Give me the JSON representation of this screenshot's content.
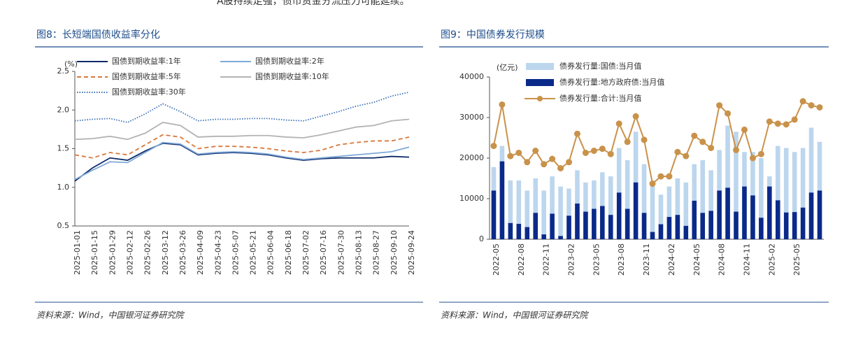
{
  "header_text": "A股持续走强，债市资金分流压力可能延续。",
  "chart_data": [
    {
      "type": "line",
      "title": "图8：长短端国债收益率分化",
      "source": "资料来源：Wind，中国银河证券研究院",
      "y_label": "(%)",
      "categories": [
        "2025-01-01",
        "2025-01-15",
        "2025-01-29",
        "2025-02-12",
        "2025-02-26",
        "2025-03-12",
        "2025-03-26",
        "2025-04-09",
        "2025-04-23",
        "2025-05-07",
        "2025-05-21",
        "2025-06-04",
        "2025-06-18",
        "2025-07-02",
        "2025-07-16",
        "2025-07-30",
        "2025-08-13",
        "2025-08-27",
        "2025-09-10",
        "2025-09-24"
      ],
      "ylim": [
        0.5,
        2.5
      ],
      "yticks": [
        0.5,
        {
          "value": 1,
          "label": "1.0"
        },
        1.5,
        {
          "value": 2,
          "label": "2.0"
        },
        2.5
      ],
      "series": [
        {
          "name": "国债到期收益率:1年",
          "color": "#0d2a6b",
          "style": "solid",
          "values": [
            1.08,
            1.25,
            1.38,
            1.35,
            1.47,
            1.57,
            1.55,
            1.42,
            1.44,
            1.45,
            1.44,
            1.42,
            1.38,
            1.35,
            1.37,
            1.38,
            1.38,
            1.38,
            1.4,
            1.39
          ]
        },
        {
          "name": "国债到期收益率:2年",
          "color": "#7fa9d8",
          "style": "solid",
          "values": [
            1.1,
            1.22,
            1.33,
            1.32,
            1.45,
            1.58,
            1.56,
            1.43,
            1.45,
            1.46,
            1.45,
            1.43,
            1.39,
            1.36,
            1.38,
            1.4,
            1.42,
            1.44,
            1.46,
            1.52
          ]
        },
        {
          "name": "国债到期收益率:5年",
          "color": "#d9773a",
          "style": "dashed",
          "values": [
            1.42,
            1.38,
            1.45,
            1.42,
            1.55,
            1.68,
            1.65,
            1.5,
            1.53,
            1.53,
            1.52,
            1.5,
            1.47,
            1.45,
            1.48,
            1.55,
            1.58,
            1.6,
            1.6,
            1.65
          ]
        },
        {
          "name": "国债到期收益率:10年",
          "color": "#b3b3b3",
          "style": "solid",
          "values": [
            1.62,
            1.63,
            1.66,
            1.62,
            1.7,
            1.84,
            1.8,
            1.65,
            1.66,
            1.66,
            1.67,
            1.67,
            1.65,
            1.64,
            1.68,
            1.73,
            1.78,
            1.8,
            1.86,
            1.88
          ]
        },
        {
          "name": "国债到期收益率:30年",
          "color": "#3a6fb5",
          "style": "dotted",
          "values": [
            1.86,
            1.88,
            1.89,
            1.84,
            1.95,
            2.08,
            1.98,
            1.86,
            1.88,
            1.88,
            1.89,
            1.89,
            1.87,
            1.86,
            1.92,
            1.98,
            2.05,
            2.1,
            2.18,
            2.23
          ]
        }
      ]
    },
    {
      "type": "bar",
      "title": "图9：中国债券发行规模",
      "source": "资料来源：Wind，中国银河证券研究院",
      "y_label": "(亿元)",
      "categories": [
        "2022-05",
        null,
        null,
        "2022-08",
        null,
        null,
        "2022-11",
        null,
        null,
        "2023-02",
        null,
        null,
        "2023-05",
        null,
        null,
        "2023-08",
        null,
        null,
        "2023-11",
        null,
        null,
        "2024-02",
        null,
        null,
        "2024-05",
        null,
        null,
        "2024-08",
        null,
        null,
        "2024-11",
        null,
        null,
        "2025-02",
        null,
        null,
        "2025-05",
        null,
        null,
        null
      ],
      "ylim": [
        0,
        40000
      ],
      "yticks": [
        0,
        10000,
        20000,
        30000,
        40000
      ],
      "series": [
        {
          "name": "债券发行量:国债:当月值",
          "color": "#bcd6ee",
          "mark": "bar",
          "values": [
            17800,
            23000,
            14500,
            14500,
            12000,
            15000,
            12000,
            15500,
            13000,
            12500,
            17000,
            14000,
            14500,
            16500,
            15500,
            22500,
            19500,
            26500,
            18500,
            14000,
            11000,
            13000,
            15000,
            14000,
            18500,
            19500,
            17000,
            22000,
            28000,
            26500,
            21500,
            21500,
            20000,
            15500,
            23000,
            22500,
            21500,
            22500,
            27500,
            24000
          ]
        },
        {
          "name": "债券发行量:地方政府债:当月值",
          "color": "#0a2a8a",
          "mark": "bar",
          "values": [
            12000,
            19200,
            4000,
            3800,
            3000,
            6500,
            1200,
            6300,
            800,
            5800,
            8800,
            6800,
            7500,
            8200,
            6000,
            11500,
            7500,
            14000,
            6500,
            1800,
            3700,
            5500,
            6000,
            3300,
            9500,
            6500,
            7000,
            12000,
            12700,
            6800,
            13000,
            10800,
            5300,
            13000,
            9600,
            6600,
            6700,
            7800,
            11500,
            12000
          ]
        },
        {
          "name": "债券发行量:合计:当月值",
          "color": "#c9924a",
          "mark": "line",
          "values": [
            23000,
            33200,
            20500,
            21300,
            19000,
            21800,
            18500,
            19800,
            17500,
            19000,
            26000,
            21300,
            21800,
            22300,
            21000,
            28500,
            24000,
            30300,
            24500,
            13700,
            15500,
            15500,
            21500,
            20500,
            25500,
            24000,
            22500,
            33000,
            31000,
            22000,
            27000,
            20000,
            21000,
            29000,
            28500,
            28300,
            29500,
            34000,
            33000,
            32500
          ]
        }
      ]
    }
  ]
}
